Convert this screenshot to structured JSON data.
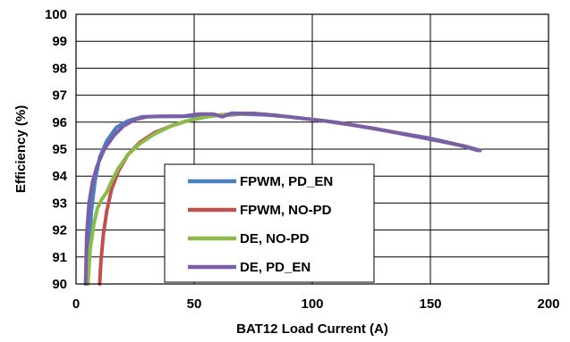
{
  "chart_data": {
    "type": "line",
    "title": "",
    "xlabel": "BAT12 Load Current (A)",
    "ylabel": "Efficiency (%)",
    "xlim": [
      0,
      200
    ],
    "ylim": [
      90,
      100
    ],
    "x_ticks": [
      0,
      50,
      100,
      150,
      200
    ],
    "y_ticks": [
      90,
      91,
      92,
      93,
      94,
      95,
      96,
      97,
      98,
      99,
      100
    ],
    "grid": true,
    "legend_position": "bottom-center",
    "series": [
      {
        "name": "FPWM, PD_EN",
        "color": "#4a7fc1",
        "points": [
          [
            5,
            90
          ],
          [
            5.5,
            91.3
          ],
          [
            6.5,
            92.7
          ],
          [
            8,
            93.8
          ],
          [
            10,
            94.7
          ],
          [
            13,
            95.3
          ],
          [
            17,
            95.8
          ],
          [
            22,
            96.05
          ],
          [
            28,
            96.2
          ],
          [
            35,
            96.22
          ],
          [
            45,
            96.22
          ],
          [
            55,
            96.25
          ],
          [
            62,
            96.25
          ],
          [
            70,
            96.3
          ],
          [
            80,
            96.27
          ],
          [
            90,
            96.2
          ],
          [
            100,
            96.1
          ],
          [
            110,
            96.0
          ],
          [
            120,
            95.85
          ],
          [
            130,
            95.7
          ],
          [
            140,
            95.55
          ],
          [
            150,
            95.4
          ],
          [
            160,
            95.2
          ],
          [
            170,
            94.95
          ]
        ]
      },
      {
        "name": "FPWM, NO-PD",
        "color": "#c0504d",
        "points": [
          [
            10,
            90
          ],
          [
            10.5,
            90.8
          ],
          [
            11.5,
            91.8
          ],
          [
            13,
            92.7
          ],
          [
            15,
            93.5
          ],
          [
            18,
            94.2
          ],
          [
            22,
            94.8
          ],
          [
            27,
            95.25
          ],
          [
            33,
            95.6
          ],
          [
            40,
            95.85
          ],
          [
            47,
            96.05
          ],
          [
            55,
            96.2
          ],
          [
            65,
            96.3
          ],
          [
            75,
            96.32
          ],
          [
            85,
            96.25
          ],
          [
            95,
            96.15
          ],
          [
            105,
            96.05
          ],
          [
            115,
            95.92
          ],
          [
            125,
            95.78
          ],
          [
            135,
            95.62
          ],
          [
            145,
            95.45
          ],
          [
            155,
            95.28
          ],
          [
            165,
            95.1
          ],
          [
            171,
            94.95
          ]
        ]
      },
      {
        "name": "DE, NO-PD",
        "color": "#8bbb48",
        "points": [
          [
            5,
            90
          ],
          [
            6,
            91.3
          ],
          [
            7.5,
            92.2
          ],
          [
            9,
            92.8
          ],
          [
            11,
            93.15
          ],
          [
            13,
            93.4
          ],
          [
            15,
            93.8
          ],
          [
            18,
            94.3
          ],
          [
            22,
            94.8
          ],
          [
            27,
            95.2
          ],
          [
            33,
            95.55
          ],
          [
            40,
            95.85
          ],
          [
            47,
            96.05
          ],
          [
            55,
            96.2
          ],
          [
            65,
            96.3
          ],
          [
            75,
            96.32
          ],
          [
            85,
            96.25
          ],
          [
            95,
            96.15
          ],
          [
            105,
            96.05
          ],
          [
            115,
            95.92
          ],
          [
            125,
            95.78
          ],
          [
            135,
            95.62
          ],
          [
            145,
            95.45
          ],
          [
            155,
            95.28
          ],
          [
            165,
            95.1
          ],
          [
            171,
            94.95
          ]
        ]
      },
      {
        "name": "DE, PD_EN",
        "color": "#7b5ea7",
        "points": [
          [
            4,
            90
          ],
          [
            4.5,
            91.8
          ],
          [
            5.5,
            93
          ],
          [
            7,
            93.8
          ],
          [
            9,
            94.4
          ],
          [
            12,
            95.0
          ],
          [
            16,
            95.5
          ],
          [
            20,
            95.85
          ],
          [
            25,
            96.1
          ],
          [
            30,
            96.2
          ],
          [
            38,
            96.22
          ],
          [
            45,
            96.22
          ],
          [
            52,
            96.3
          ],
          [
            58,
            96.3
          ],
          [
            62,
            96.2
          ],
          [
            66,
            96.33
          ],
          [
            75,
            96.32
          ],
          [
            85,
            96.25
          ],
          [
            95,
            96.15
          ],
          [
            105,
            96.05
          ],
          [
            115,
            95.92
          ],
          [
            125,
            95.78
          ],
          [
            135,
            95.62
          ],
          [
            145,
            95.45
          ],
          [
            155,
            95.28
          ],
          [
            165,
            95.1
          ],
          [
            171,
            94.95
          ]
        ]
      }
    ]
  }
}
